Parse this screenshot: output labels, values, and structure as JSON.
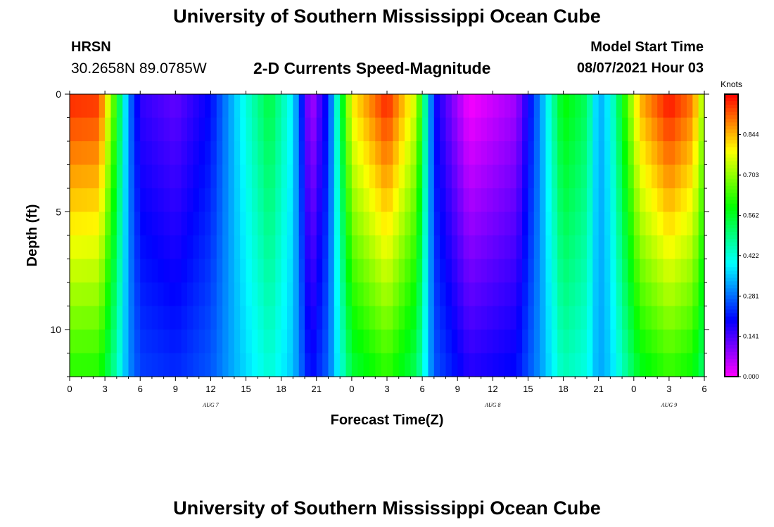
{
  "header": {
    "title": "University of Southern Mississippi Ocean Cube",
    "station": "HRSN",
    "coordinates": "30.2658N  89.0785W",
    "chart_title": "2-D Currents Speed-Magnitude",
    "model_start_label": "Model Start Time",
    "model_start_value": "08/07/2021 Hour 03"
  },
  "footer": {
    "title": "University of Southern Mississippi Ocean Cube"
  },
  "chart_data": {
    "type": "heatmap",
    "title": "2-D Currents Speed-Magnitude",
    "xlabel": "Forecast Time(Z)",
    "ylabel": "Depth (ft)",
    "x_tick_labels": [
      "0",
      "3",
      "6",
      "9",
      "12",
      "15",
      "18",
      "21",
      "0",
      "3",
      "6",
      "9",
      "12",
      "15",
      "18",
      "21",
      "0",
      "3",
      "6"
    ],
    "x_hours": [
      0,
      3,
      6,
      9,
      12,
      15,
      18,
      21,
      24,
      27,
      30,
      33,
      36,
      39,
      42,
      45,
      48,
      51,
      54
    ],
    "date_labels": [
      {
        "label": "AUG 7",
        "hour": 12
      },
      {
        "label": "AUG 8",
        "hour": 36
      },
      {
        "label": "AUG 9",
        "hour": 51
      }
    ],
    "xlim": [
      0,
      54
    ],
    "ylim": [
      0,
      12
    ],
    "y_ticks": [
      0,
      5,
      10
    ],
    "y_tick_labels": [
      "0",
      "5",
      "10"
    ],
    "colorbar": {
      "unit": "Knots",
      "range": [
        0.0,
        0.985
      ],
      "tick_values": [
        0.0,
        0.141,
        0.281,
        0.422,
        0.562,
        0.703,
        0.844
      ],
      "tick_labels": [
        "0.000",
        "0.141",
        "0.281",
        "0.422",
        "0.562",
        "0.703",
        "0.844"
      ]
    },
    "colorscale": [
      "#ff00ff",
      "#8000ff",
      "#0000ff",
      "#0080ff",
      "#00ffff",
      "#00ff80",
      "#00ff00",
      "#80ff00",
      "#ffff00",
      "#ff8000",
      "#ff0000"
    ],
    "surface_speed_profile": {
      "hours": [
        0,
        2.5,
        4,
        5,
        6,
        9,
        12,
        15,
        17,
        19,
        20.5,
        22,
        24,
        27,
        29.5,
        31,
        34,
        38,
        40,
        42,
        44,
        45,
        46,
        48.5,
        51,
        53,
        54
      ],
      "speed": [
        0.96,
        0.95,
        0.6,
        0.3,
        0.16,
        0.12,
        0.2,
        0.42,
        0.55,
        0.38,
        0.05,
        0.22,
        0.8,
        0.97,
        0.75,
        0.2,
        0.0,
        0.07,
        0.3,
        0.6,
        0.52,
        0.32,
        0.4,
        0.85,
        0.98,
        0.9,
        0.7
      ]
    }
  }
}
